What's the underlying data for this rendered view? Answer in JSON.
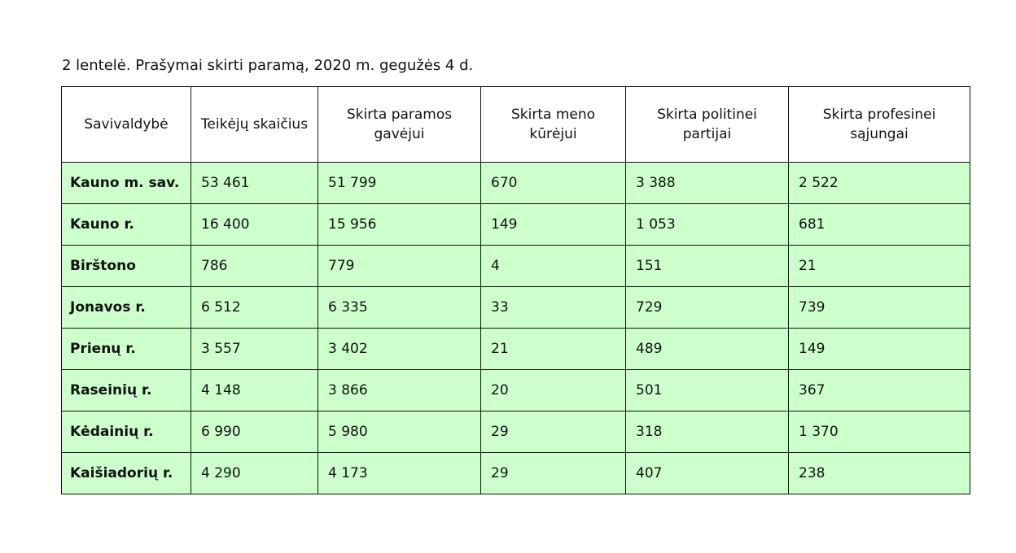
{
  "caption": "2 lentelė. Prašymai skirti paramą, 2020 m. gegužės 4 d.",
  "colors": {
    "row_background": "#ccffcc",
    "header_background": "#ffffff"
  },
  "table": {
    "headers": [
      "Savivaldybė",
      "Teikėjų skaičius",
      "Skirta paramos gavėjui",
      "Skirta meno kūrėjui",
      "Skirta politinei partijai",
      "Skirta profesinei sąjungai"
    ],
    "rows": [
      [
        "Kauno m. sav.",
        "53 461",
        "51 799",
        "670",
        "3 388",
        "2 522"
      ],
      [
        "Kauno r.",
        "16 400",
        "15 956",
        "149",
        "1 053",
        "681"
      ],
      [
        "Birštono",
        "786",
        "779",
        "4",
        "151",
        "21"
      ],
      [
        "Jonavos r.",
        "6 512",
        "6 335",
        "33",
        "729",
        "739"
      ],
      [
        "Prienų r.",
        "3 557",
        "3 402",
        "21",
        "489",
        "149"
      ],
      [
        "Raseinių r.",
        "4 148",
        "3 866",
        "20",
        "501",
        "367"
      ],
      [
        "Kėdainių r.",
        "6 990",
        "5 980",
        "29",
        "318",
        "1 370"
      ],
      [
        "Kaišiadorių r.",
        "4 290",
        "4 173",
        "29",
        "407",
        "238"
      ]
    ]
  }
}
